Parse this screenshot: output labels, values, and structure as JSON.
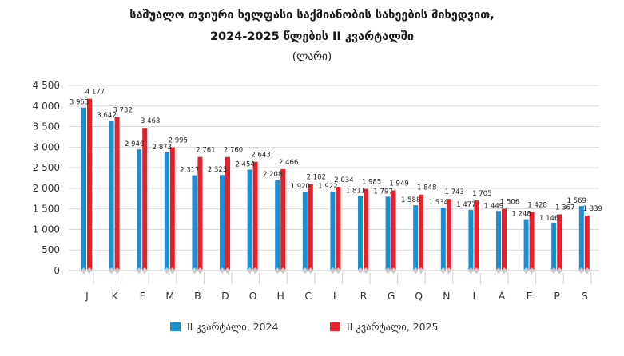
{
  "title_line1": "საშუალო თვიური ხელფასი საქმიანობის სახეების მიხედვით,",
  "title_line2": "2024-2025 წლების II კვარტალში",
  "title_line3": "(ლარი)",
  "colors": {
    "series2024": "#1a8fd1",
    "series2025": "#e8202a",
    "grid": "#d9d9d9",
    "cap": "#c8c8c8"
  },
  "chart_data": {
    "type": "bar",
    "title": "საშუალო თვიური ხელფასი საქმიანობის სახეების მიხედვით, 2024-2025 წლების II კვარტალში (ლარი)",
    "categories": [
      "J",
      "K",
      "F",
      "M",
      "B",
      "D",
      "O",
      "H",
      "C",
      "L",
      "R",
      "G",
      "Q",
      "N",
      "I",
      "A",
      "E",
      "P",
      "S"
    ],
    "series": [
      {
        "name": "II კვარტალი, 2024",
        "values": [
          3963,
          3642,
          2946,
          2873,
          2317,
          2323,
          2454,
          2208,
          1920,
          1922,
          1811,
          1797,
          1588,
          1534,
          1477,
          1449,
          1248,
          1146,
          1569
        ],
        "labels": [
          "3 963",
          "3 642",
          "2 946",
          "2 873",
          "2 317",
          "2 323",
          "2 454",
          "2 208",
          "1 920",
          "1 922",
          "1 811",
          "1 797",
          "1 588",
          "1 534",
          "1 477",
          "1 449",
          "1 248",
          "1 146",
          "1 569"
        ]
      },
      {
        "name": "II კვარტალი, 2025",
        "values": [
          4177,
          3732,
          3468,
          2995,
          2761,
          2760,
          2643,
          2466,
          2102,
          2034,
          1985,
          1949,
          1848,
          1743,
          1705,
          1506,
          1428,
          1367,
          1339
        ],
        "labels": [
          "4 177",
          "3 732",
          "3 468",
          "2 995",
          "2 761",
          "2 760",
          "2 643",
          "2 466",
          "2 102",
          "2 034",
          "1 985",
          "1 949",
          "1 848",
          "1 743",
          "1 705",
          "1 506",
          "1 428",
          "1 367",
          "1 339"
        ]
      }
    ],
    "yticks": [
      "0",
      "500",
      "1 000",
      "1 500",
      "2 000",
      "2 500",
      "3 000",
      "3 500",
      "4 000",
      "4 500"
    ],
    "ylim": [
      0,
      4500
    ],
    "xlabel": "",
    "ylabel": "",
    "grid": true,
    "legend": "bottom"
  }
}
